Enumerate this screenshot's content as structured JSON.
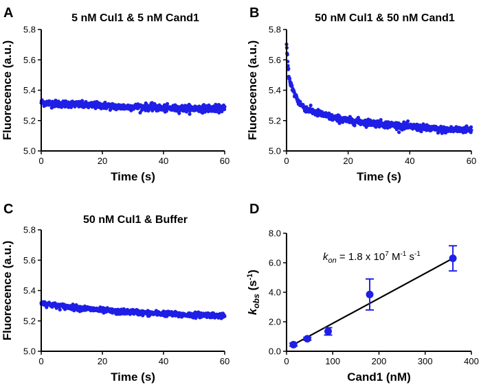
{
  "figure": {
    "marker_color": "#1f1fe6",
    "fit_color": "#000000"
  },
  "chart_data": [
    {
      "id": "A",
      "type": "scatter",
      "letter": "A",
      "title": "5 nM Cul1 & 5 nM Cand1",
      "xlabel": "Time (s)",
      "ylabel": "Fluorecence (a.u.)",
      "xlim": [
        0,
        60
      ],
      "ylim": [
        5.0,
        5.8
      ],
      "xticks": [
        0,
        20,
        40,
        60
      ],
      "yticks": [
        "5.0",
        "5.2",
        "5.4",
        "5.6",
        "5.8"
      ],
      "grid": false,
      "series": [
        {
          "x": [
            0,
            5,
            10,
            15,
            20,
            25,
            30,
            35,
            40,
            45,
            50,
            55,
            60
          ],
          "values": [
            5.32,
            5.31,
            5.31,
            5.3,
            5.3,
            5.29,
            5.29,
            5.29,
            5.28,
            5.28,
            5.28,
            5.28,
            5.28
          ],
          "scatter": 0.02
        }
      ]
    },
    {
      "id": "B",
      "type": "scatter",
      "letter": "B",
      "title": "50 nM Cul1 & 50 nM Cand1",
      "xlabel": "Time (s)",
      "ylabel": "Fluorecence (a.u.)",
      "xlim": [
        0,
        60
      ],
      "ylim": [
        5.0,
        5.8
      ],
      "xticks": [
        0,
        20,
        40,
        60
      ],
      "yticks": [
        "5.0",
        "5.2",
        "5.4",
        "5.6",
        "5.8"
      ],
      "grid": false,
      "series": [
        {
          "x": [
            0,
            0.5,
            1,
            2,
            3,
            4,
            5,
            7,
            10,
            15,
            20,
            25,
            30,
            35,
            40,
            45,
            50,
            55,
            60
          ],
          "values": [
            5.7,
            5.55,
            5.47,
            5.4,
            5.36,
            5.32,
            5.3,
            5.27,
            5.25,
            5.22,
            5.2,
            5.19,
            5.18,
            5.17,
            5.16,
            5.15,
            5.14,
            5.14,
            5.14
          ],
          "scatter": 0.02
        }
      ]
    },
    {
      "id": "C",
      "type": "scatter",
      "letter": "C",
      "title": "50 nM Cul1 & Buffer",
      "xlabel": "Time (s)",
      "ylabel": "Fluorecence (a.u.)",
      "xlim": [
        0,
        60
      ],
      "ylim": [
        5.0,
        5.8
      ],
      "xticks": [
        0,
        20,
        40,
        60
      ],
      "yticks": [
        "5.0",
        "5.2",
        "5.4",
        "5.6",
        "5.8"
      ],
      "grid": false,
      "series": [
        {
          "x": [
            0,
            5,
            10,
            15,
            20,
            25,
            30,
            35,
            40,
            45,
            50,
            55,
            60
          ],
          "values": [
            5.32,
            5.3,
            5.29,
            5.28,
            5.27,
            5.26,
            5.26,
            5.25,
            5.25,
            5.24,
            5.24,
            5.24,
            5.23
          ],
          "scatter": 0.015
        }
      ]
    },
    {
      "id": "D",
      "type": "scatter",
      "letter": "D",
      "title": "",
      "xlabel": "Cand1 (nM)",
      "ylabel_main": "k",
      "ylabel_sub": "obs",
      "ylabel_rest": " (s",
      "ylabel_sup": "-1",
      "ylabel_end": ")",
      "xlim": [
        0,
        400
      ],
      "ylim": [
        0,
        8
      ],
      "xticks": [
        0,
        100,
        200,
        300,
        400
      ],
      "yticks": [
        "0.0",
        "2.0",
        "4.0",
        "6.0",
        "8.0"
      ],
      "grid": false,
      "annotation": {
        "k": "k",
        "sub": "on",
        "text": " = 1.8 x 10",
        "exp": "7",
        "unit1": " M",
        "unit1_sup": "-1",
        "unit2": " s",
        "unit2_sup": "-1"
      },
      "points": [
        {
          "x": 15,
          "y": 0.45,
          "err": 0.1
        },
        {
          "x": 45,
          "y": 0.85,
          "err": 0.1
        },
        {
          "x": 90,
          "y": 1.35,
          "err": 0.25
        },
        {
          "x": 180,
          "y": 3.85,
          "err": 1.05
        },
        {
          "x": 360,
          "y": 6.3,
          "err": 0.85
        }
      ],
      "fit": {
        "x": [
          15,
          360
        ],
        "y": [
          0.45,
          6.3
        ]
      }
    }
  ]
}
